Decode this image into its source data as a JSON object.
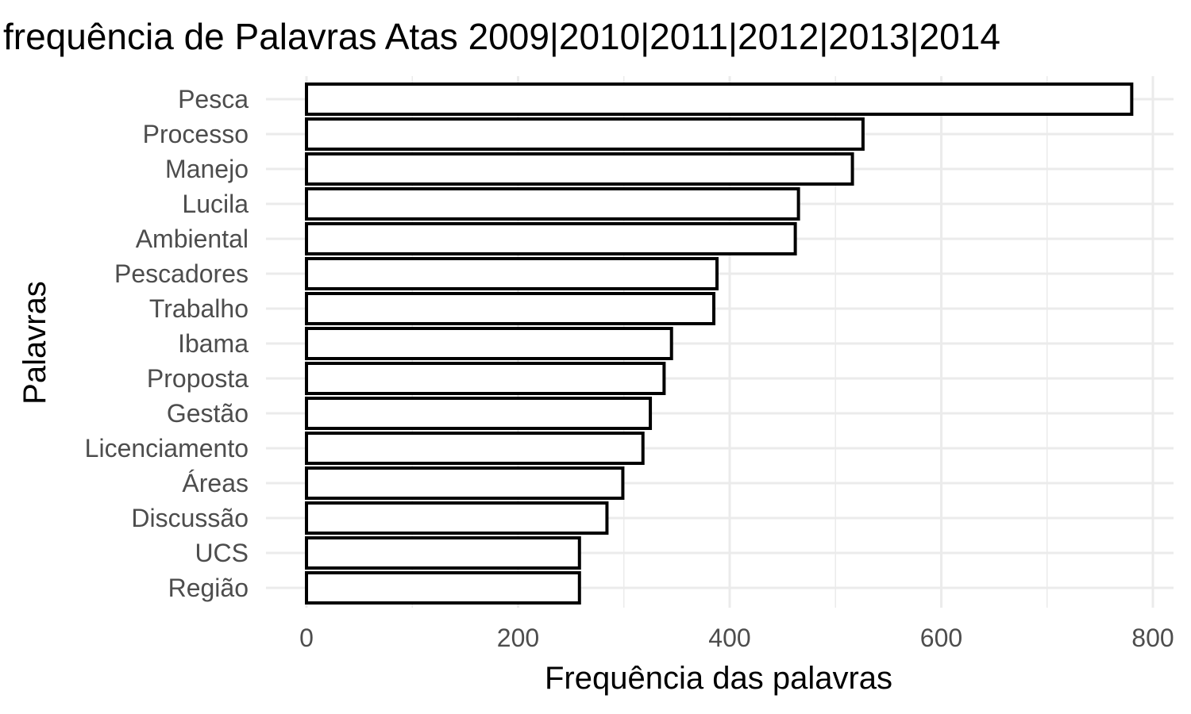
{
  "chart_data": {
    "type": "bar",
    "orientation": "horizontal",
    "title": "frequência de Palavras Atas 2009|2010|2011|2012|2013|2014",
    "xlabel": "Frequência das palavras",
    "ylabel": "Palavras",
    "categories": [
      "Pesca",
      "Processo",
      "Manejo",
      "Lucila",
      "Ambiental",
      "Pescadores",
      "Trabalho",
      "Ibama",
      "Proposta",
      "Gestão",
      "Licenciamento",
      "Áreas",
      "Discussão",
      "UCS",
      "Região"
    ],
    "values": [
      780,
      526,
      516,
      465,
      462,
      388,
      385,
      345,
      338,
      325,
      318,
      299,
      284,
      258,
      258
    ],
    "xlim": [
      0,
      820
    ],
    "xticks": [
      0,
      200,
      400,
      600,
      800
    ],
    "xtick_labels": [
      "0",
      "200",
      "400",
      "600",
      "800"
    ],
    "grid": true,
    "colors": {
      "bar_fill": "#ffffff",
      "bar_stroke": "#000000",
      "grid": "#ebebeb"
    }
  }
}
